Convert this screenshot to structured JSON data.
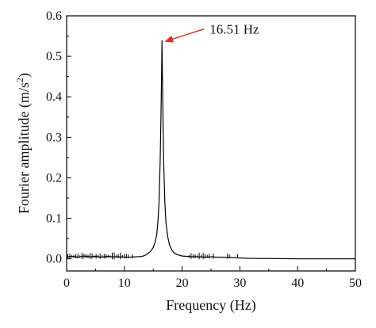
{
  "chart_data": {
    "type": "line",
    "title": "",
    "xlabel": "Frequency (Hz)",
    "ylabel_main": "Fourier amplitude (m/s",
    "ylabel_sup": "2",
    "ylabel_close": ")",
    "xlim": [
      0,
      50
    ],
    "ylim": [
      -0.03,
      0.6
    ],
    "x_ticks": [
      0,
      10,
      20,
      30,
      40,
      50
    ],
    "x_tick_labels": [
      "0",
      "10",
      "20",
      "30",
      "40",
      "50"
    ],
    "y_ticks": [
      0.0,
      0.1,
      0.2,
      0.3,
      0.4,
      0.5,
      0.6
    ],
    "y_tick_labels": [
      "0.0",
      "0.1",
      "0.2",
      "0.3",
      "0.4",
      "0.5",
      "0.6"
    ],
    "grid": false,
    "legend": "none",
    "line_color": "#000000",
    "annotation": {
      "text": "16.51 Hz",
      "x": 16.51,
      "y": 0.54,
      "color": "#d9342b"
    },
    "series": [
      {
        "x": [
          0,
          1,
          2,
          3,
          4,
          5,
          6,
          7,
          8,
          9,
          10,
          11,
          12,
          13,
          13.5,
          14,
          14.5,
          15,
          15.3,
          15.6,
          15.8,
          16.0,
          16.2,
          16.35,
          16.45,
          16.51,
          16.57,
          16.67,
          16.8,
          17.0,
          17.2,
          17.5,
          17.8,
          18.2,
          18.6,
          19,
          20,
          21,
          22,
          23,
          24,
          25,
          26,
          27,
          28,
          29,
          30,
          32,
          35,
          40,
          45,
          50
        ],
        "y": [
          0.005,
          0.006,
          0.004,
          0.007,
          0.005,
          0.006,
          0.004,
          0.006,
          0.005,
          0.005,
          0.004,
          0.004,
          0.005,
          0.006,
          0.008,
          0.012,
          0.018,
          0.028,
          0.04,
          0.06,
          0.09,
          0.14,
          0.24,
          0.36,
          0.47,
          0.54,
          0.47,
          0.36,
          0.24,
          0.14,
          0.09,
          0.055,
          0.035,
          0.022,
          0.015,
          0.011,
          0.007,
          0.006,
          0.005,
          0.005,
          0.004,
          0.005,
          0.004,
          0.004,
          0.003,
          0.003,
          0.002,
          0.001,
          0.001,
          0.0,
          0.0,
          0.0
        ]
      }
    ]
  }
}
